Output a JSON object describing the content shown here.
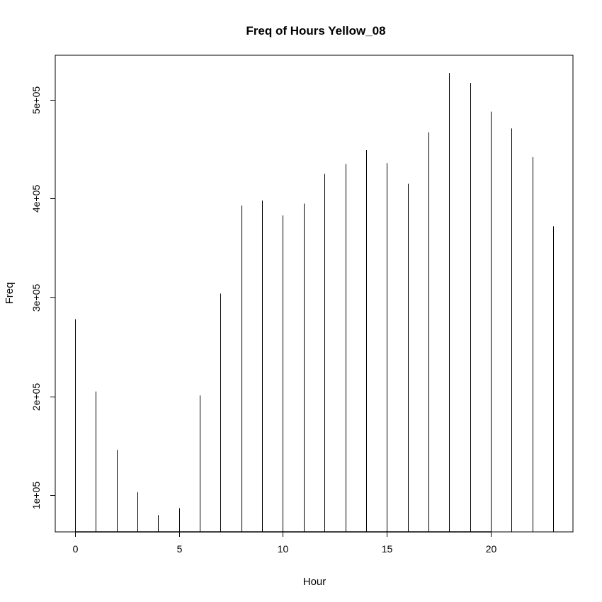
{
  "chart_data": {
    "type": "bar",
    "style": "spikes",
    "title": "Freq of Hours Yellow_08",
    "xlabel": "Hour",
    "ylabel": "Freq",
    "x": [
      0,
      1,
      2,
      3,
      4,
      5,
      6,
      7,
      8,
      9,
      10,
      11,
      12,
      13,
      14,
      15,
      16,
      17,
      18,
      19,
      20,
      21,
      22,
      23
    ],
    "values": [
      278000,
      205000,
      146000,
      103000,
      80000,
      87000,
      201000,
      304000,
      393000,
      398000,
      383000,
      395000,
      425000,
      435000,
      449000,
      436000,
      415000,
      467000,
      527000,
      517000,
      488000,
      471000,
      442000,
      372000
    ],
    "xlim": [
      -0.95,
      23.95
    ],
    "ylim": [
      63000,
      545000
    ],
    "baseline": 63000,
    "baseline_span": [
      0,
      20
    ],
    "xticks": [
      0,
      5,
      10,
      15,
      20
    ],
    "xtick_labels": [
      "0",
      "5",
      "10",
      "15",
      "20"
    ],
    "yticks": [
      100000,
      200000,
      300000,
      400000,
      500000
    ],
    "ytick_labels": [
      "1e+05",
      "2e+05",
      "3e+05",
      "4e+05",
      "5e+05"
    ],
    "grid": false,
    "legend": "none"
  }
}
